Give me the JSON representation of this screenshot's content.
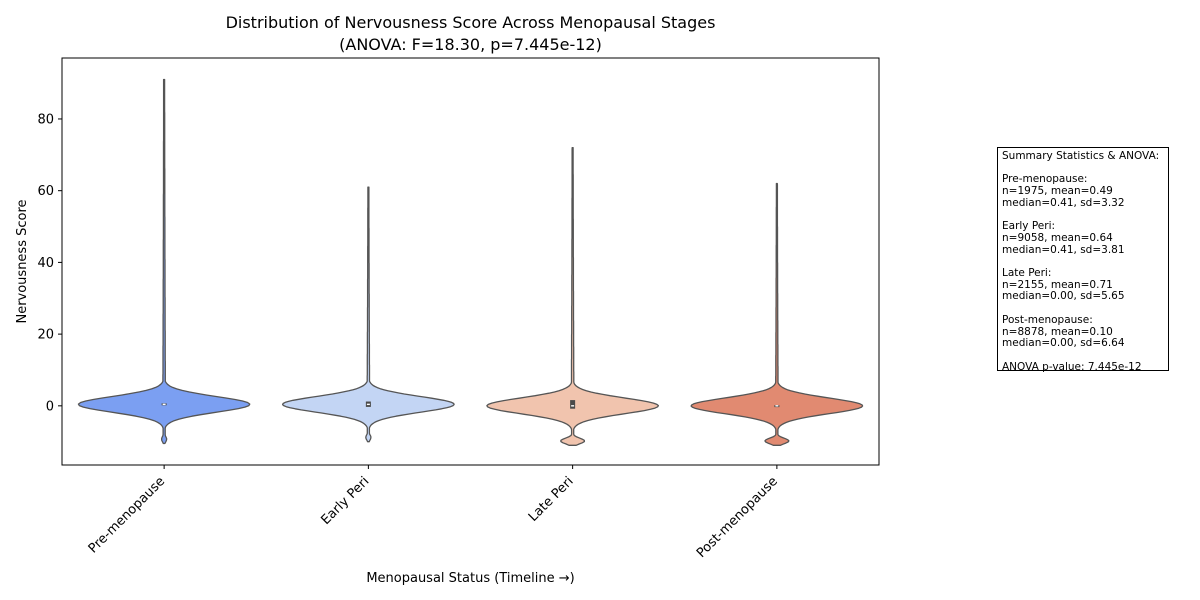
{
  "chart_data": {
    "type": "violin",
    "title": "Distribution of Nervousness Score Across Menopausal Stages",
    "subtitle": "(ANOVA: F=18.30, p=7.445e-12)",
    "xlabel": "Menopausal Status (Timeline →)",
    "ylabel": "Nervousness Score",
    "ylim": [
      -16.5,
      97
    ],
    "yticks": [
      0,
      20,
      40,
      60,
      80
    ],
    "categories": [
      "Pre-menopause",
      "Early Peri",
      "Late Peri",
      "Post-menopause"
    ],
    "colors": [
      "#7b9ff2",
      "#c3d5f4",
      "#f1c4ae",
      "#e18a71"
    ],
    "series": [
      {
        "category": "Pre-menopause",
        "n": 1975,
        "mean": 0.49,
        "median": 0.41,
        "sd": 3.32,
        "min": -10.5,
        "max": 91,
        "q1": 0.2,
        "q3": 0.7
      },
      {
        "category": "Early Peri",
        "n": 9058,
        "mean": 0.64,
        "median": 0.41,
        "sd": 3.81,
        "min": -10.0,
        "max": 61,
        "q1": -0.3,
        "q3": 1.2
      },
      {
        "category": "Late Peri",
        "n": 2155,
        "mean": 0.71,
        "median": 0.0,
        "sd": 5.65,
        "min": -11.0,
        "max": 72,
        "q1": -0.8,
        "q3": 1.6
      },
      {
        "category": "Post-menopause",
        "n": 8878,
        "mean": 0.1,
        "median": 0.0,
        "sd": 6.64,
        "min": -11.0,
        "max": 62,
        "q1": -0.2,
        "q3": 0.2
      }
    ],
    "grid": false,
    "legend": "none",
    "annotation": {
      "heading": "Summary Statistics & ANOVA:",
      "lines": [
        "",
        "Pre-menopause:",
        "n=1975, mean=0.49",
        "median=0.41, sd=3.32",
        "",
        "Early Peri:",
        "n=9058, mean=0.64",
        "median=0.41, sd=3.81",
        "",
        "Late Peri:",
        "n=2155, mean=0.71",
        "median=0.00, sd=5.65",
        "",
        "Post-menopause:",
        "n=8878, mean=0.10",
        "median=0.00, sd=6.64",
        "",
        "ANOVA p-value: 7.445e-12"
      ]
    }
  }
}
